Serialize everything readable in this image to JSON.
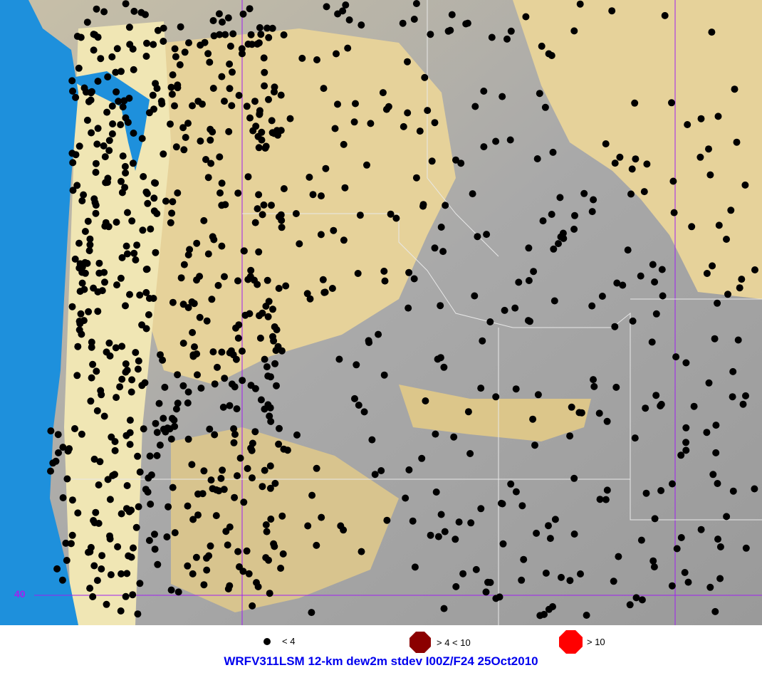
{
  "map": {
    "latitude_label": "40",
    "colors": {
      "ocean": "#1e90dc",
      "lowland": "#e8d49a",
      "mountain": "#a8a8a8",
      "gridline": "#a020f0",
      "station": "#000000"
    }
  },
  "legend": [
    {
      "label": "< 4",
      "color": "#000000",
      "icon": "small-dot"
    },
    {
      "label": "> 4 < 10",
      "color": "#8b0000",
      "icon": "octagon"
    },
    {
      "label": "> 10",
      "color": "#ff0000",
      "icon": "octagon"
    }
  ],
  "title": "WRFV311LSM 12-km dew2m stdev I00Z/F24 25Oct2010"
}
